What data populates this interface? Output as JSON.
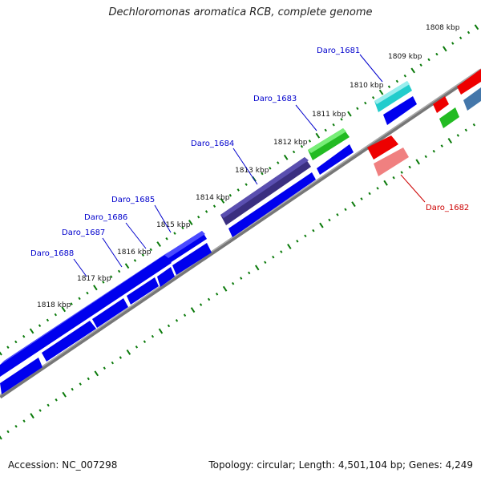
{
  "title": "Dechloromonas aromatica RCB, complete genome",
  "accession": "Accession: NC_007298",
  "summary": "Topology: circular; Length: 4,501,104 bp; Genes: 4,249",
  "colors": {
    "backbone": "#777777",
    "tick_dots": "#0a7a0a",
    "blue_gene": "#0000ee",
    "blue_gene_light": "#4a4aff",
    "red_gene": "#ee0000",
    "pink_gene": "#f08080",
    "cyan_gene": "#22cccc",
    "green_gene": "#22bb22",
    "purple_gene": "#3a2f80",
    "steel_gene": "#4477aa",
    "label_blue": "#0000cc",
    "label_red": "#cc0000"
  },
  "kbp_ticks": [
    "1808 kbp",
    "1809 kbp",
    "1810 kbp",
    "1811 kbp",
    "1812 kbp",
    "1813 kbp",
    "1814 kbp",
    "1815 kbp",
    "1816 kbp",
    "1817 kbp",
    "1818 kbp"
  ],
  "gene_labels": [
    {
      "id": "Daro_1681",
      "strand": "top"
    },
    {
      "id": "Daro_1682",
      "strand": "bottom"
    },
    {
      "id": "Daro_1683",
      "strand": "top"
    },
    {
      "id": "Daro_1684",
      "strand": "top"
    },
    {
      "id": "Daro_1685",
      "strand": "top"
    },
    {
      "id": "Daro_1686",
      "strand": "top"
    },
    {
      "id": "Daro_1687",
      "strand": "top"
    },
    {
      "id": "Daro_1688",
      "strand": "top"
    }
  ]
}
